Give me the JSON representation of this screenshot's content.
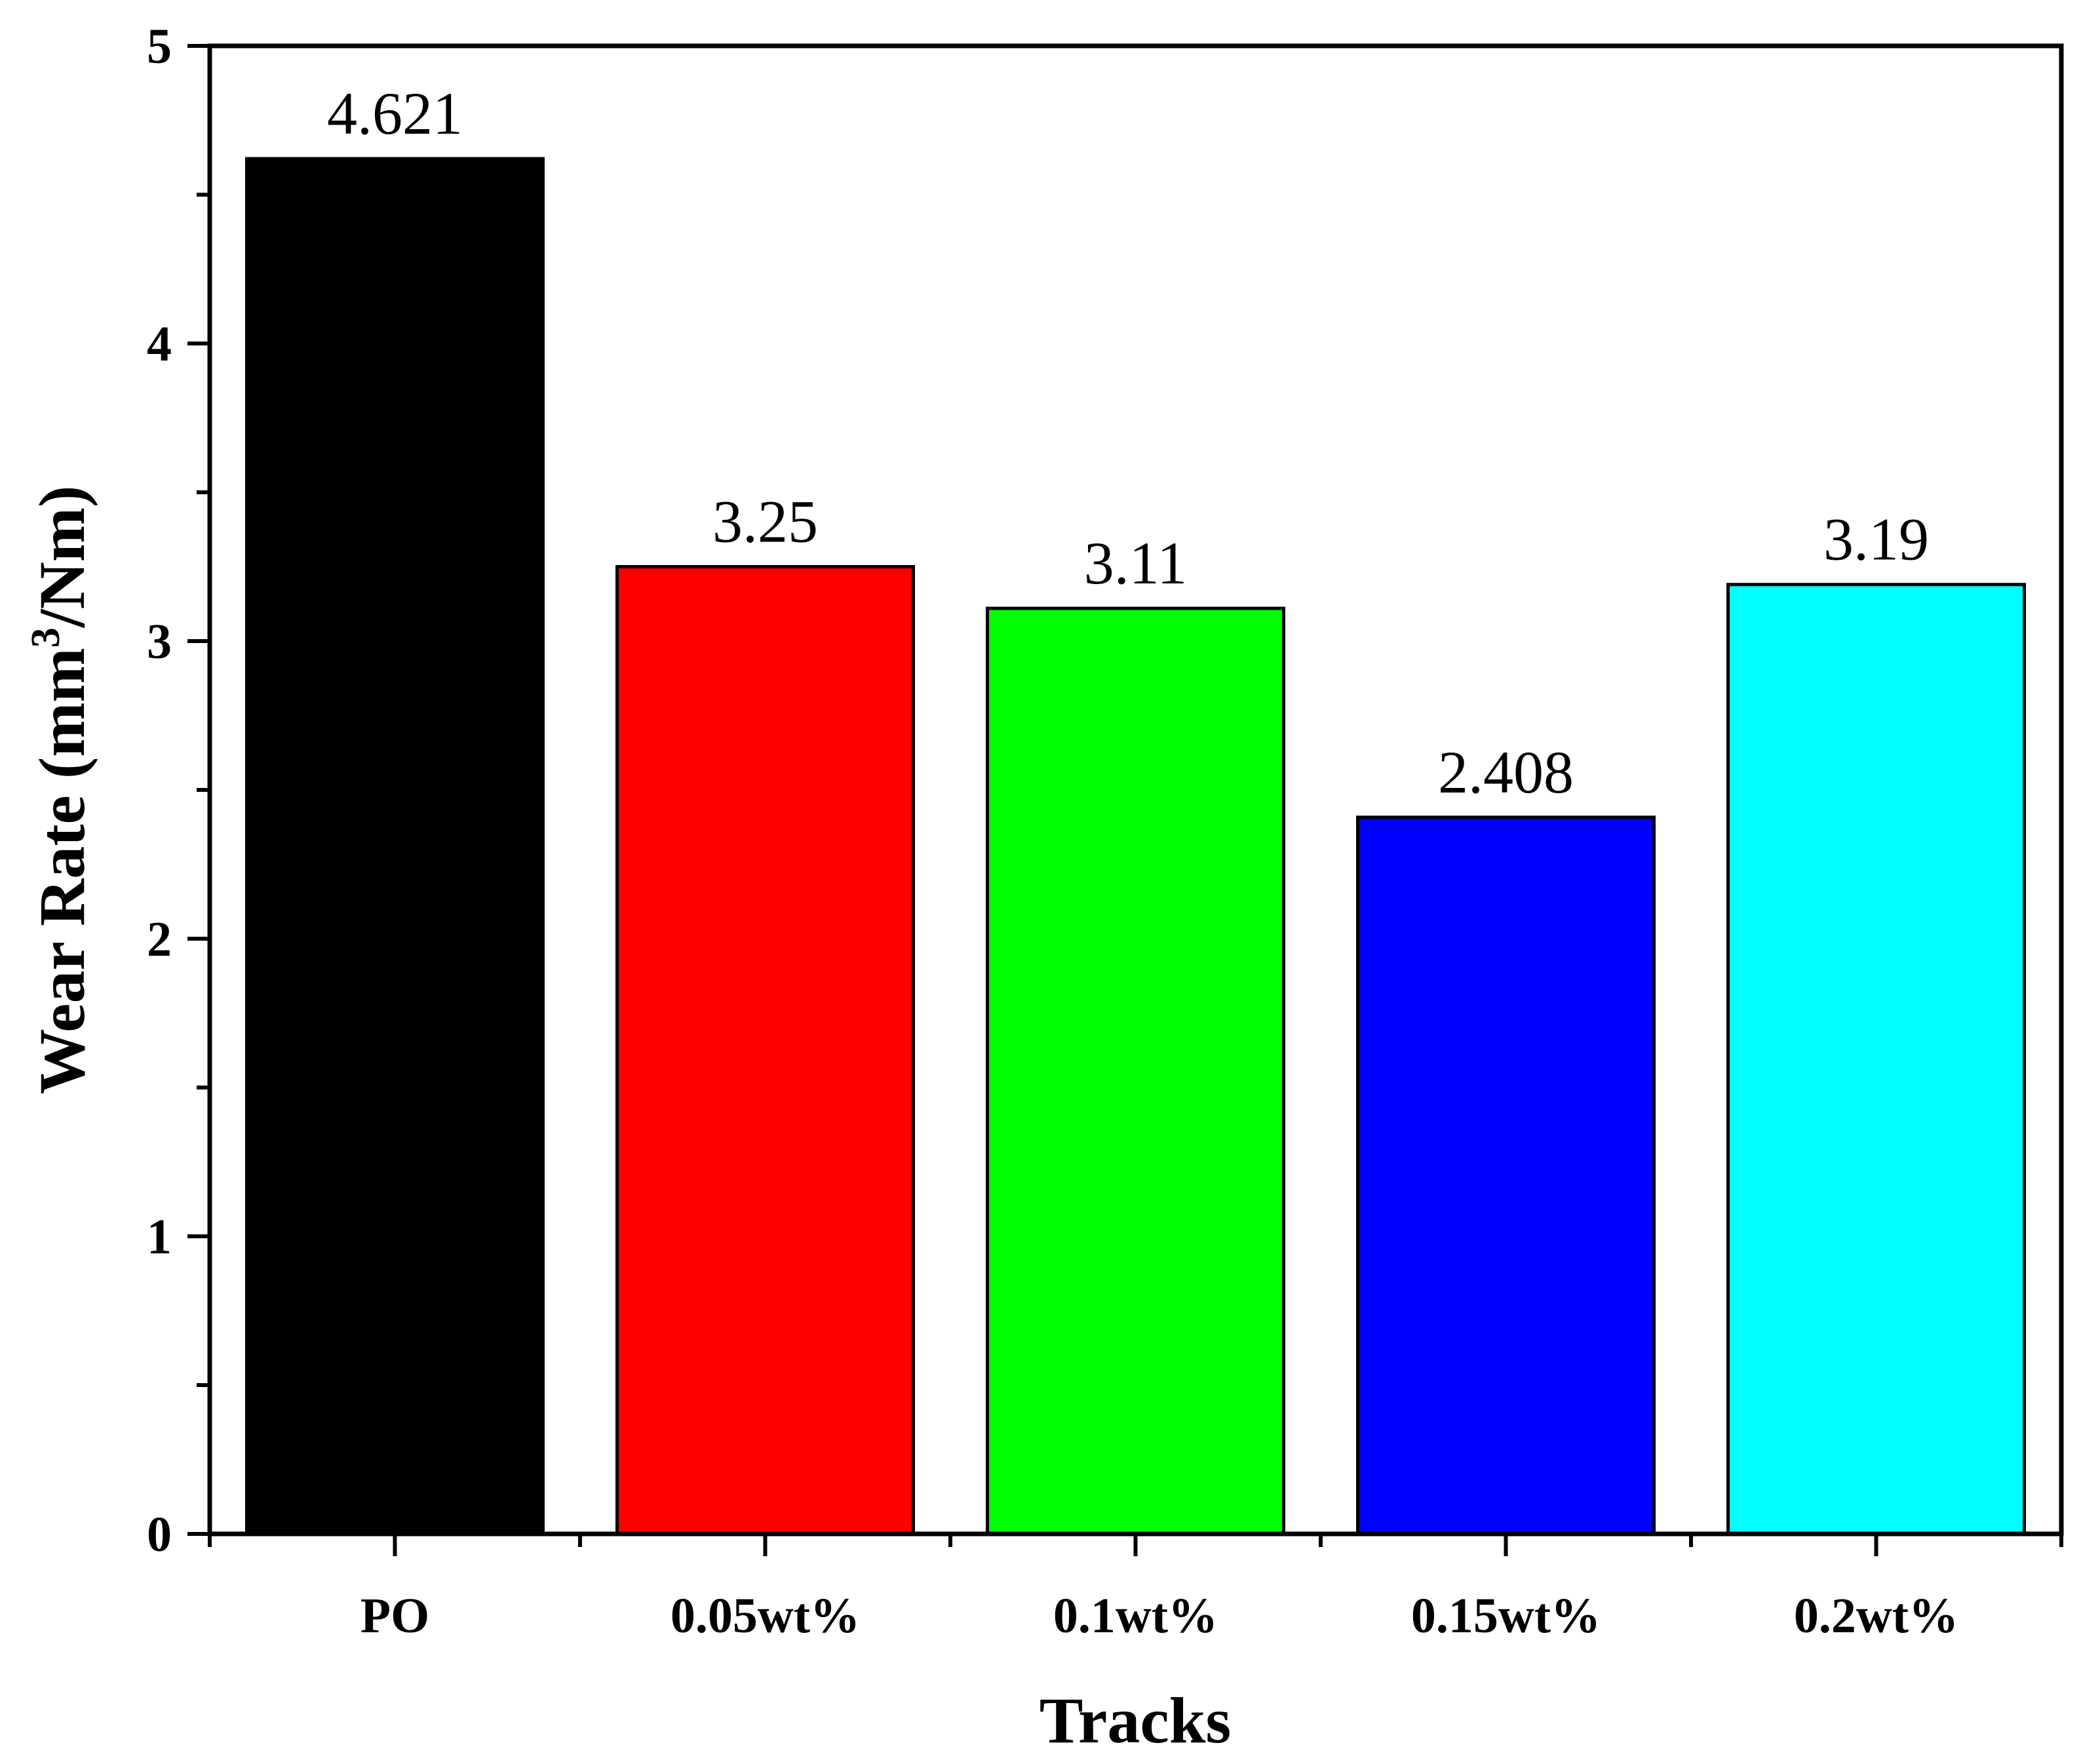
{
  "chart_data": {
    "type": "bar",
    "categories": [
      "PO",
      "0.05wt%",
      "0.1wt%",
      "0.15wt%",
      "0.2wt%"
    ],
    "values": [
      4.621,
      3.25,
      3.11,
      2.408,
      3.19
    ],
    "data_labels": [
      "4.621",
      "3.25",
      "3.11",
      "2.408",
      "3.19"
    ],
    "colors": [
      "#000000",
      "#ff0000",
      "#00ff00",
      "#0000ff",
      "#00ffff"
    ],
    "title": "",
    "xlabel": "Tracks",
    "ylabel_parts": {
      "before": "Wear Rate (mm",
      "sup": "3",
      "after": "/Nm)"
    },
    "ylim": [
      0,
      5
    ],
    "y_ticks": [
      0,
      1,
      2,
      3,
      4,
      5
    ],
    "y_tick_labels": [
      "0",
      "1",
      "2",
      "3",
      "4",
      "5"
    ],
    "y_minor_ticks": [
      0.5,
      1.5,
      2.5,
      3.5,
      4.5
    ],
    "grid": false,
    "legend": "none"
  }
}
